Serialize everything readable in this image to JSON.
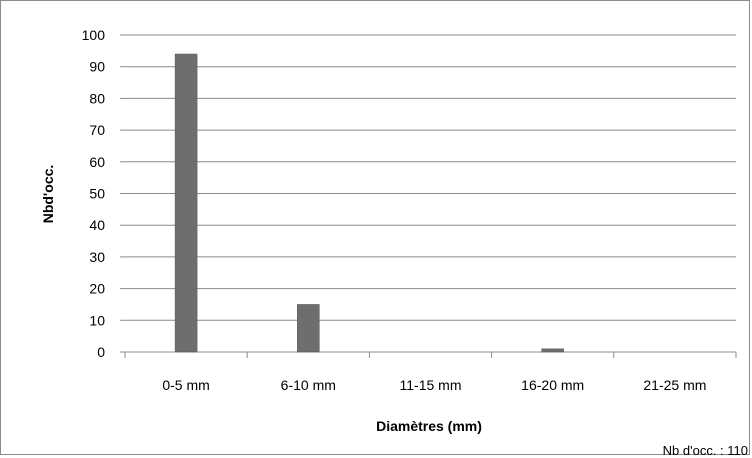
{
  "chart_data": {
    "type": "bar",
    "categories": [
      "0-5 mm",
      "6-10 mm",
      "11-15 mm",
      "16-20 mm",
      "21-25 mm"
    ],
    "values": [
      94,
      15,
      0,
      1,
      0
    ],
    "xlabel": "Diamètres (mm)",
    "ylabel": "Nbd'occ.",
    "ylim": [
      0,
      100
    ],
    "yticks": [
      0,
      10,
      20,
      30,
      40,
      50,
      60,
      70,
      80,
      90,
      100
    ],
    "grid": true,
    "bar_color": "#6e6e6e",
    "annotation": "Nb d'occ. : 110"
  }
}
